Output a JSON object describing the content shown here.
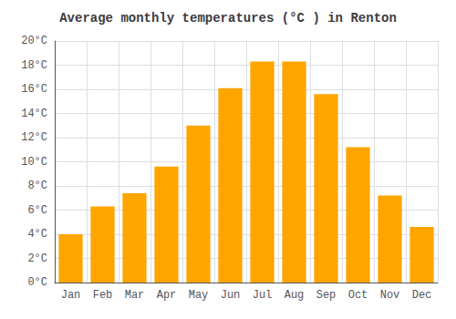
{
  "chart_data": {
    "type": "bar",
    "title": "Average monthly temperatures (°C ) in Renton",
    "categories": [
      "Jan",
      "Feb",
      "Mar",
      "Apr",
      "May",
      "Jun",
      "Jul",
      "Aug",
      "Sep",
      "Oct",
      "Nov",
      "Dec"
    ],
    "values": [
      4.0,
      6.3,
      7.4,
      9.6,
      13.0,
      16.1,
      18.3,
      18.3,
      15.6,
      11.2,
      7.2,
      4.6
    ],
    "color": "#FFA500",
    "ylim": [
      0,
      20
    ],
    "yticks": [
      {
        "value": 0,
        "label": "0°C"
      },
      {
        "value": 2,
        "label": "2°C"
      },
      {
        "value": 4,
        "label": "4°C"
      },
      {
        "value": 6,
        "label": "6°C"
      },
      {
        "value": 8,
        "label": "8°C"
      },
      {
        "value": 10,
        "label": "10°C"
      },
      {
        "value": 12,
        "label": "12°C"
      },
      {
        "value": 14,
        "label": "14°C"
      },
      {
        "value": 16,
        "label": "16°C"
      },
      {
        "value": 18,
        "label": "18°C"
      },
      {
        "value": 20,
        "label": "20°C"
      }
    ],
    "grid": true
  }
}
